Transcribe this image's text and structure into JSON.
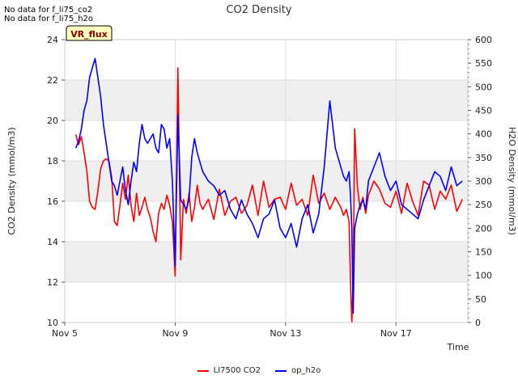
{
  "notes": [
    "No data for f_li75_co2",
    "No data for f_li75_h2o"
  ],
  "badge": "VR_flux",
  "colors": {
    "co2": "#ff0000",
    "h2o": "#0000ff",
    "band": "#efefef",
    "badge_bg": "#ffffc0",
    "badge_text": "#8b0000"
  },
  "chart_data": {
    "type": "line",
    "title": "CO2 Density",
    "xlabel": "Time",
    "ylabel": "CO2 Density (mmol/m3)",
    "y2label": "H2O Density (mmol/m3)",
    "xlim": [
      0,
      14.6
    ],
    "ylim": [
      10,
      24
    ],
    "y2lim": [
      0,
      600
    ],
    "xticks": [
      {
        "value": 0,
        "label": "Nov 5"
      },
      {
        "value": 4,
        "label": "Nov 9"
      },
      {
        "value": 8,
        "label": "Nov 13"
      },
      {
        "value": 12,
        "label": "Nov 17"
      }
    ],
    "yticks": [
      10,
      12,
      14,
      16,
      18,
      20,
      22,
      24
    ],
    "y2ticks": [
      0,
      50,
      100,
      150,
      200,
      250,
      300,
      350,
      400,
      450,
      500,
      550,
      600
    ],
    "legend_position": "bottom-center",
    "series": [
      {
        "name": "LI7500 CO2",
        "axis": "left",
        "color": "#ff0000",
        "x": [
          0.4,
          0.5,
          0.6,
          0.7,
          0.8,
          0.9,
          1.0,
          1.1,
          1.2,
          1.3,
          1.4,
          1.5,
          1.6,
          1.7,
          1.8,
          1.9,
          2.0,
          2.1,
          2.2,
          2.3,
          2.4,
          2.5,
          2.6,
          2.7,
          2.8,
          2.9,
          3.0,
          3.1,
          3.2,
          3.3,
          3.4,
          3.5,
          3.6,
          3.7,
          3.8,
          3.9,
          4.0,
          4.1,
          4.2,
          4.3,
          4.4,
          4.5,
          4.6,
          4.7,
          4.8,
          4.9,
          5.0,
          5.2,
          5.4,
          5.6,
          5.8,
          6.0,
          6.2,
          6.4,
          6.6,
          6.8,
          7.0,
          7.2,
          7.4,
          7.6,
          7.8,
          8.0,
          8.2,
          8.4,
          8.6,
          8.8,
          9.0,
          9.2,
          9.4,
          9.6,
          9.8,
          10.0,
          10.1,
          10.2,
          10.3,
          10.35,
          10.4,
          10.45,
          10.5,
          10.6,
          10.7,
          10.8,
          10.9,
          11.0,
          11.2,
          11.4,
          11.6,
          11.8,
          12.0,
          12.2,
          12.4,
          12.6,
          12.8,
          13.0,
          13.2,
          13.4,
          13.6,
          13.8,
          14.0,
          14.2,
          14.4
        ],
        "y": [
          19.3,
          18.8,
          19.2,
          18.4,
          17.5,
          16.0,
          15.7,
          15.6,
          16.5,
          17.6,
          18.0,
          18.1,
          18.0,
          17.2,
          15.0,
          14.8,
          15.8,
          16.9,
          16.1,
          17.3,
          15.8,
          15.0,
          16.4,
          15.3,
          15.7,
          16.2,
          15.6,
          15.2,
          14.5,
          14.0,
          15.4,
          15.9,
          15.6,
          16.3,
          15.8,
          15.0,
          12.3,
          22.6,
          13.1,
          16.1,
          15.4,
          16.4,
          15.0,
          15.7,
          16.8,
          15.9,
          15.6,
          16.1,
          15.1,
          16.6,
          15.3,
          16.0,
          16.2,
          15.4,
          15.8,
          16.8,
          15.3,
          17.0,
          15.7,
          16.1,
          16.2,
          15.6,
          16.9,
          15.8,
          16.1,
          15.3,
          17.3,
          15.9,
          16.4,
          15.6,
          16.2,
          15.7,
          15.3,
          15.6,
          15.0,
          12.1,
          10.0,
          12.2,
          19.6,
          16.7,
          15.6,
          16.2,
          15.4,
          16.3,
          17.0,
          16.6,
          15.9,
          15.7,
          16.5,
          15.4,
          16.9,
          16.0,
          15.3,
          17.0,
          16.8,
          15.6,
          16.5,
          16.1,
          16.8,
          15.5,
          16.1
        ]
      },
      {
        "name": "op_h2o",
        "axis": "right",
        "color": "#0000ff",
        "x": [
          0.4,
          0.5,
          0.6,
          0.7,
          0.8,
          0.9,
          1.0,
          1.1,
          1.2,
          1.3,
          1.4,
          1.5,
          1.6,
          1.7,
          1.8,
          1.9,
          2.0,
          2.1,
          2.2,
          2.3,
          2.4,
          2.5,
          2.6,
          2.7,
          2.8,
          2.9,
          3.0,
          3.1,
          3.2,
          3.3,
          3.4,
          3.5,
          3.6,
          3.7,
          3.8,
          3.9,
          4.0,
          4.1,
          4.2,
          4.3,
          4.4,
          4.5,
          4.6,
          4.7,
          4.8,
          4.9,
          5.0,
          5.2,
          5.4,
          5.6,
          5.8,
          6.0,
          6.2,
          6.4,
          6.6,
          6.8,
          7.0,
          7.2,
          7.4,
          7.6,
          7.8,
          8.0,
          8.2,
          8.4,
          8.6,
          8.8,
          9.0,
          9.2,
          9.4,
          9.6,
          9.8,
          10.0,
          10.1,
          10.2,
          10.3,
          10.35,
          10.4,
          10.45,
          10.5,
          10.6,
          10.7,
          10.8,
          10.9,
          11.0,
          11.2,
          11.4,
          11.6,
          11.8,
          12.0,
          12.2,
          12.4,
          12.6,
          12.8,
          13.0,
          13.2,
          13.4,
          13.6,
          13.8,
          14.0,
          14.2,
          14.4
        ],
        "y": [
          370,
          385,
          410,
          450,
          470,
          520,
          540,
          560,
          520,
          480,
          420,
          380,
          340,
          300,
          290,
          270,
          300,
          330,
          280,
          250,
          300,
          340,
          320,
          380,
          420,
          390,
          380,
          390,
          400,
          370,
          360,
          420,
          410,
          370,
          390,
          300,
          120,
          440,
          260,
          250,
          240,
          260,
          350,
          390,
          360,
          340,
          320,
          300,
          290,
          270,
          280,
          240,
          220,
          260,
          230,
          210,
          180,
          220,
          230,
          260,
          200,
          180,
          210,
          160,
          220,
          250,
          190,
          230,
          330,
          470,
          370,
          330,
          310,
          300,
          320,
          270,
          200,
          20,
          200,
          230,
          250,
          260,
          240,
          300,
          330,
          360,
          310,
          280,
          300,
          250,
          240,
          230,
          220,
          260,
          290,
          320,
          310,
          280,
          330,
          290,
          300
        ]
      }
    ]
  }
}
